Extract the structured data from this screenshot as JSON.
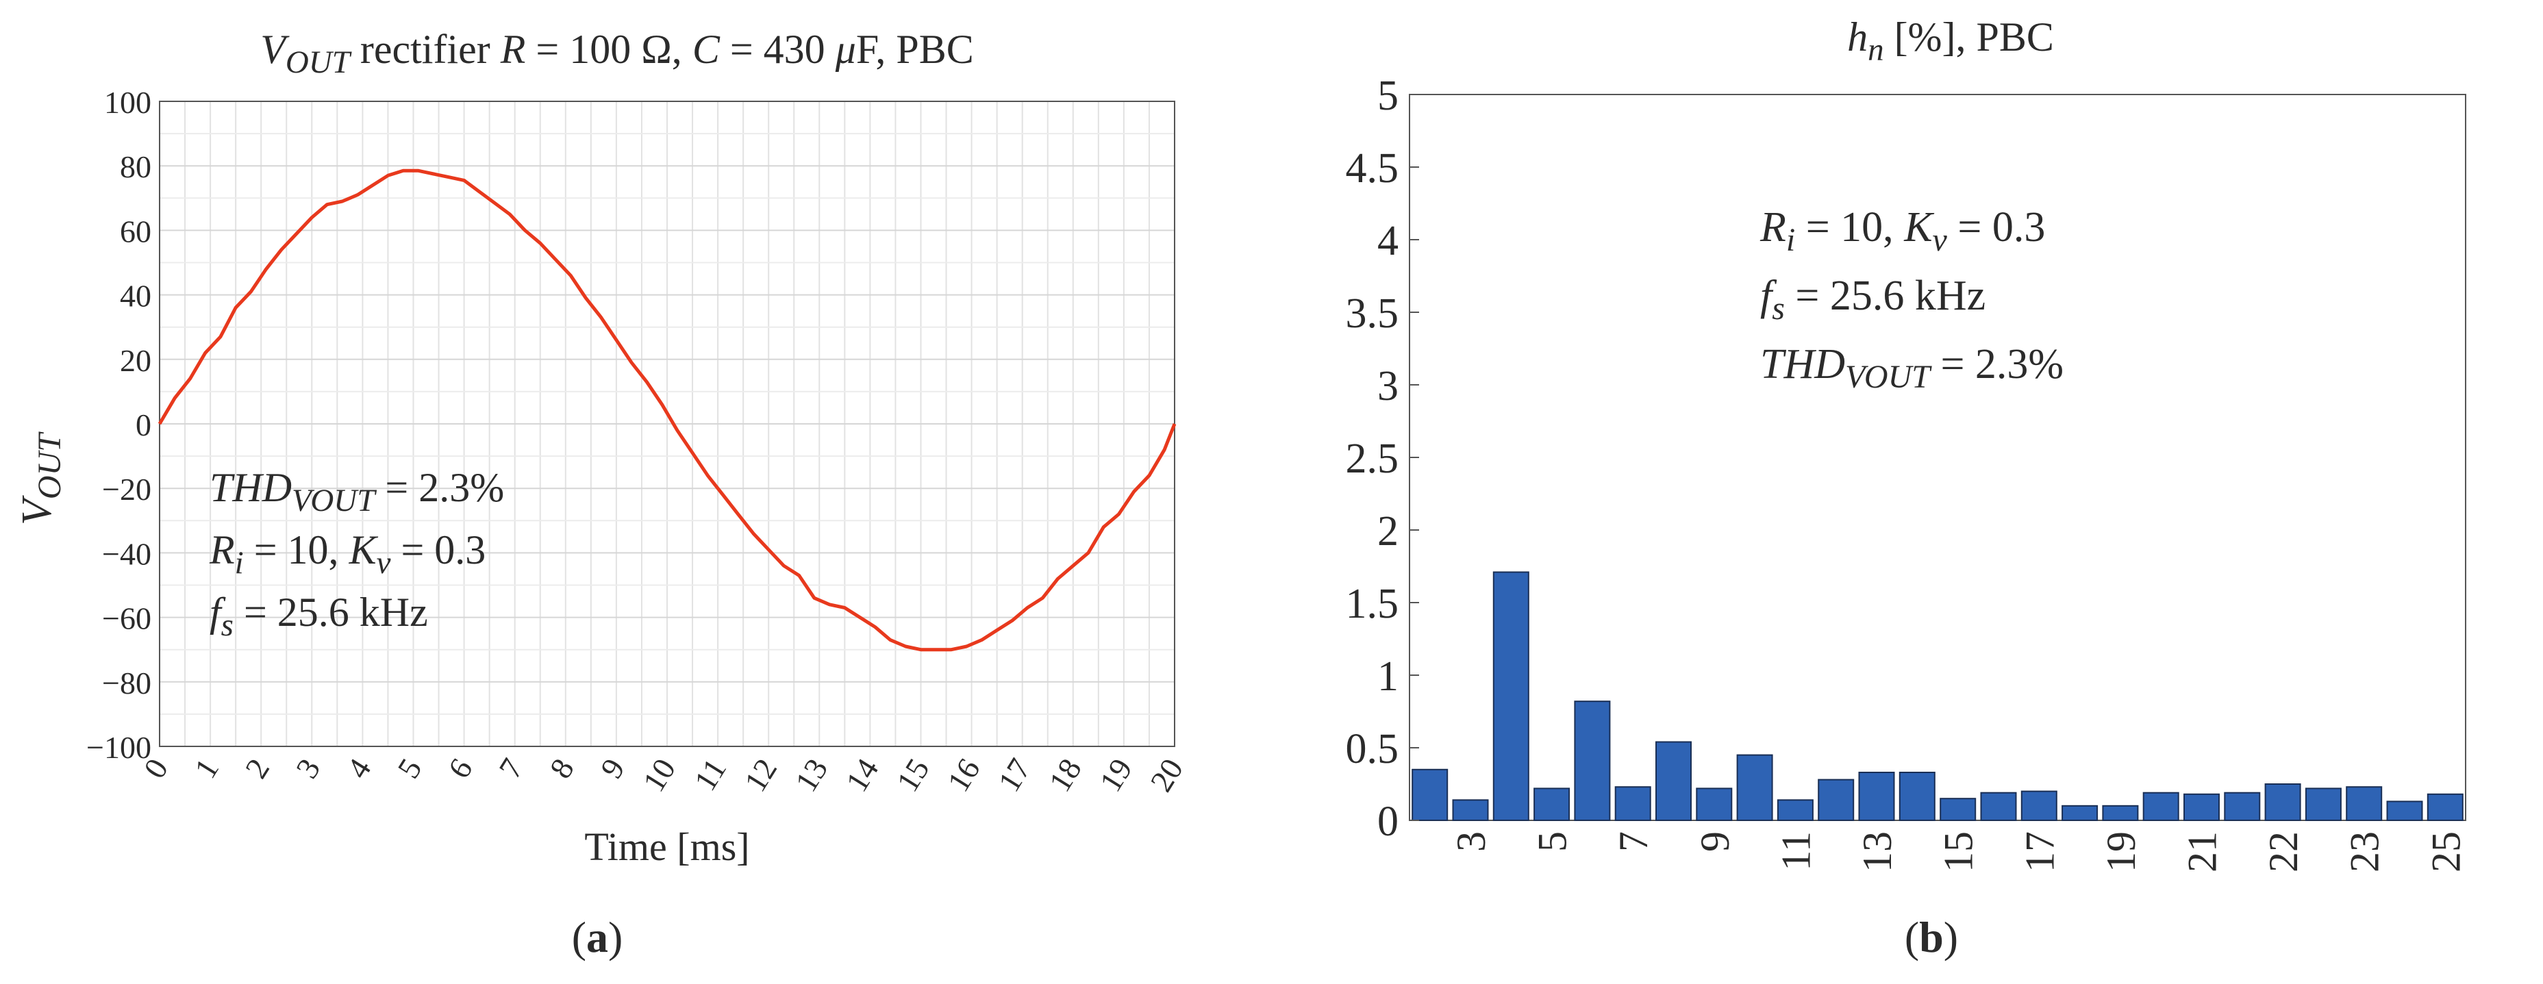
{
  "chart_data": [
    {
      "type": "line",
      "panel_label": "a",
      "title_parts": [
        {
          "t": "V",
          "s": "it"
        },
        {
          "t": "OUT",
          "s": "sub"
        },
        {
          "t": " rectifier ",
          "s": ""
        },
        {
          "t": "R",
          "s": "it"
        },
        {
          "t": " = 100 Ω, ",
          "s": ""
        },
        {
          "t": "C",
          "s": "it"
        },
        {
          "t": " = 430 ",
          "s": ""
        },
        {
          "t": "μ",
          "s": "it"
        },
        {
          "t": "F, PBC",
          "s": ""
        }
      ],
      "xlabel": "Time [ms]",
      "ylabel_main": "V",
      "ylabel_sub": "OUT",
      "xlim": [
        0,
        20
      ],
      "ylim": [
        -100,
        100
      ],
      "xticks": [
        "0",
        "1",
        "2",
        "3",
        "4",
        "5",
        "6",
        "7",
        "8",
        "9",
        "10",
        "11",
        "12",
        "13",
        "14",
        "15",
        "16",
        "17",
        "18",
        "19",
        "20"
      ],
      "yticks": [
        "100",
        "80",
        "60",
        "40",
        "20",
        "0",
        "−20",
        "−40",
        "−60",
        "−80",
        "−100"
      ],
      "grid": true,
      "series": [
        {
          "color": "#e8391d",
          "x": [
            0,
            0.3,
            0.6,
            0.9,
            1.2,
            1.5,
            1.8,
            2.1,
            2.4,
            2.7,
            3.0,
            3.3,
            3.6,
            3.9,
            4.2,
            4.5,
            4.8,
            5.1,
            5.4,
            5.7,
            6.0,
            6.3,
            6.6,
            6.9,
            7.2,
            7.5,
            7.8,
            8.1,
            8.4,
            8.7,
            9.0,
            9.3,
            9.6,
            9.9,
            10.2,
            10.5,
            10.8,
            11.1,
            11.4,
            11.7,
            12.0,
            12.3,
            12.6,
            12.9,
            13.2,
            13.5,
            13.8,
            14.1,
            14.4,
            14.7,
            15.0,
            15.3,
            15.6,
            15.9,
            16.2,
            16.5,
            16.8,
            17.1,
            17.4,
            17.7,
            18.0,
            18.3,
            18.6,
            18.9,
            19.2,
            19.5,
            19.8,
            20.0
          ],
          "y": [
            0,
            8,
            14,
            22,
            27,
            36,
            41,
            48,
            54,
            59,
            64,
            68,
            69,
            71,
            74,
            77,
            78.5,
            78.5,
            77.5,
            76.5,
            75.5,
            72,
            68.5,
            65,
            60,
            56,
            51,
            46,
            39,
            33,
            26,
            19,
            13,
            6,
            -2,
            -9,
            -16,
            -22,
            -28,
            -34,
            -39,
            -44,
            -47,
            -54,
            -56,
            -57,
            -60,
            -63,
            -67,
            -69,
            -70,
            -70,
            -70,
            -69,
            -67,
            -64,
            -61,
            -57,
            -54,
            -48,
            -44,
            -40,
            -32,
            -28,
            -21,
            -16,
            -8,
            0
          ]
        }
      ],
      "annotation_lines": [
        [
          {
            "t": "THD",
            "s": "it"
          },
          {
            "t": "VOUT",
            "s": "sub"
          },
          {
            "t": " = 2.3%",
            "s": ""
          }
        ],
        [
          {
            "t": "R",
            "s": "it"
          },
          {
            "t": "i",
            "s": "sub"
          },
          {
            "t": " = 10, ",
            "s": ""
          },
          {
            "t": "K",
            "s": "it"
          },
          {
            "t": "v",
            "s": "sub"
          },
          {
            "t": " = 0.3",
            "s": ""
          }
        ],
        [
          {
            "t": "f",
            "s": "it"
          },
          {
            "t": "s",
            "s": "sub"
          },
          {
            "t": " = 25.6 kHz",
            "s": ""
          }
        ]
      ]
    },
    {
      "type": "bar",
      "panel_label": "b",
      "title_parts": [
        {
          "t": "h",
          "s": "it"
        },
        {
          "t": "n",
          "s": "sub"
        },
        {
          "t": " [%], PBC",
          "s": ""
        }
      ],
      "ylim": [
        0,
        5
      ],
      "yticks": [
        "5",
        "4.5",
        "4",
        "3.5",
        "3",
        "2.5",
        "2",
        "1.5",
        "1",
        "0.5",
        "0"
      ],
      "xtick_labels": [
        "3",
        "5",
        "7",
        "9",
        "11",
        "13",
        "15",
        "17",
        "19",
        "21",
        "22",
        "23",
        "25"
      ],
      "bar_color": "#2e63b4",
      "values": [
        0.35,
        0.14,
        1.71,
        0.22,
        0.82,
        0.23,
        0.54,
        0.22,
        0.45,
        0.14,
        0.28,
        0.33,
        0.33,
        0.15,
        0.19,
        0.2,
        0.1,
        0.1,
        0.19,
        0.18,
        0.19,
        0.25,
        0.22,
        0.23,
        0.13,
        0.18
      ],
      "annotation_lines": [
        [
          {
            "t": "R",
            "s": "it"
          },
          {
            "t": "i",
            "s": "sub"
          },
          {
            "t": " = 10, ",
            "s": ""
          },
          {
            "t": "K",
            "s": "it"
          },
          {
            "t": "v",
            "s": "sub"
          },
          {
            "t": " = 0.3",
            "s": ""
          }
        ],
        [
          {
            "t": "f",
            "s": "it"
          },
          {
            "t": "s",
            "s": "sub"
          },
          {
            "t": " = 25.6 kHz",
            "s": ""
          }
        ],
        [
          {
            "t": "THD",
            "s": "it"
          },
          {
            "t": "VOUT",
            "s": "sub"
          },
          {
            "t": " = 2.3%",
            "s": ""
          }
        ]
      ]
    }
  ]
}
